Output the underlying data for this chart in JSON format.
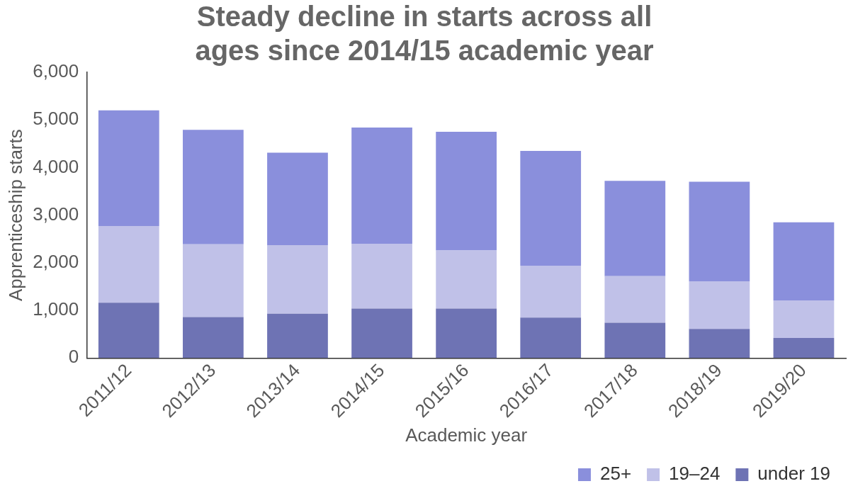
{
  "chart_data": {
    "type": "bar",
    "title": "Steady decline in starts across all ages since 2014/15 academic year",
    "xlabel": "Academic year",
    "ylabel": "Apprenticeship starts",
    "categories": [
      "2011/12",
      "2012/13",
      "2013/14",
      "2014/15",
      "2015/16",
      "2016/17",
      "2017/18",
      "2018/19",
      "2019/20"
    ],
    "series": [
      {
        "name": "under 19",
        "color": "#6e73b4",
        "values": [
          1160,
          860,
          930,
          1040,
          1040,
          850,
          740,
          610,
          420
        ]
      },
      {
        "name": "19–24",
        "color": "#c0c1e8",
        "values": [
          1610,
          1530,
          1440,
          1360,
          1220,
          1090,
          980,
          1000,
          790
        ]
      },
      {
        "name": "25+",
        "color": "#8a8fdc",
        "values": [
          2430,
          2400,
          1940,
          2440,
          2490,
          2410,
          2000,
          2090,
          1640
        ]
      }
    ],
    "stacked": true,
    "ylim": [
      0,
      6000
    ],
    "yticks": [
      0,
      {
        "value": 1000,
        "label": "1,000"
      },
      {
        "value": 2000,
        "label": "2,000"
      },
      {
        "value": 3000,
        "label": "3,000"
      },
      {
        "value": 4000,
        "label": "4,000"
      },
      {
        "value": 5000,
        "label": "5,000"
      },
      {
        "value": 6000,
        "label": "6,000"
      }
    ],
    "grid": false,
    "legend": "bottom right"
  }
}
